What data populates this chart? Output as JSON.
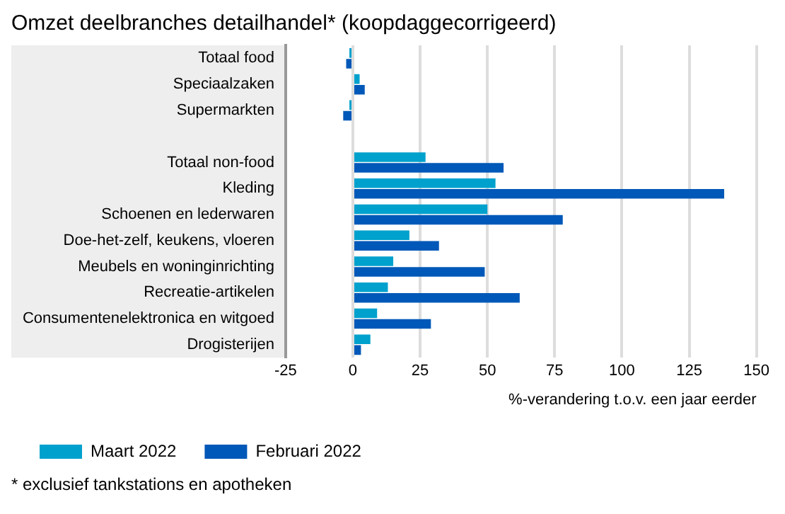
{
  "chart_data": {
    "type": "bar",
    "orientation": "horizontal",
    "title": "Omzet deelbranches detailhandel* (koopdaggecorrigeerd)",
    "xlabel": "%-verandering t.o.v. een jaar eerder",
    "categories": [
      "Totaal food",
      "Speciaalzaken",
      "Supermarkten",
      null,
      "Totaal non-food",
      "Kleding",
      "Schoenen en lederwaren",
      "Doe-het-zelf, keukens, vloeren",
      "Meubels en woninginrichting",
      "Recreatie-artikelen",
      "Consumentenelektronica en witgoed",
      "Drogisterijen"
    ],
    "series": [
      {
        "name": "Maart 2022",
        "color": "#00a1cd",
        "values": [
          -1.3,
          2.5,
          -1.3,
          null,
          27,
          53,
          50,
          21,
          15,
          13,
          9,
          6.5
        ]
      },
      {
        "name": "Februari 2022",
        "color": "#0058b8",
        "values": [
          -2.5,
          4.4,
          -3.6,
          null,
          56,
          138,
          78,
          32,
          49,
          62,
          29,
          3
        ]
      }
    ],
    "xlim": [
      -25,
      150
    ],
    "xticks": [
      -25,
      0,
      25,
      50,
      75,
      100,
      125,
      150
    ],
    "grid": "x",
    "legend": "bottom left",
    "annotations": [
      "* exclusief tankstations en apotheken"
    ]
  }
}
